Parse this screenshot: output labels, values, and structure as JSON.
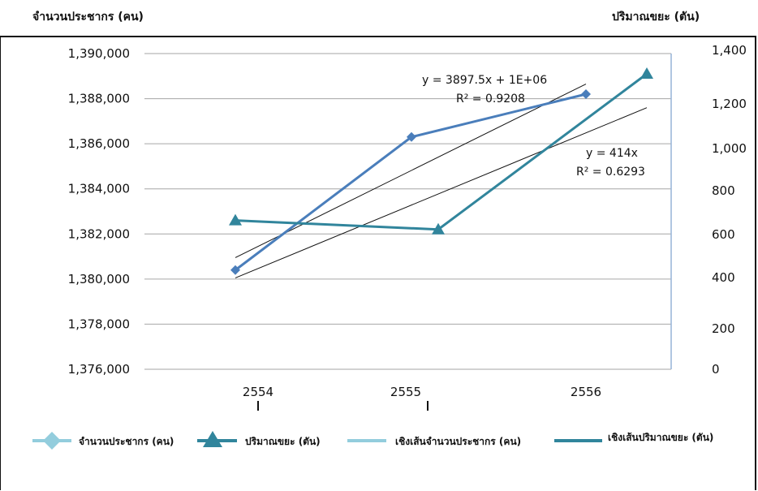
{
  "chart_data": {
    "type": "line",
    "categories": [
      "2554",
      "2555",
      "2556"
    ],
    "y_left_label": "จำนวนประชากร (คน)",
    "y_right_label": "ปริมาณขยะ (ตัน)",
    "y_left_ticks": [
      "1,376,000",
      "1,378,000",
      "1,380,000",
      "1,382,000",
      "1,384,000",
      "1,386,000",
      "1,388,000",
      "1,390,000"
    ],
    "y_right_ticks": [
      "0",
      "200",
      "400",
      "600",
      "800",
      "1,000",
      "1,200",
      "1,400"
    ],
    "y_left_range": [
      1376000,
      1390000
    ],
    "y_right_range": [
      0,
      1400
    ],
    "grid": true,
    "legend_position": "bottom",
    "series": [
      {
        "name": "จำนวนประชากร (คน)",
        "axis": "left",
        "marker": "diamond",
        "color": "#4a7ebb",
        "values": [
          1380400,
          1386300,
          1388200
        ]
      },
      {
        "name": "ปริมาณขยะ (ตัน)",
        "axis": "right",
        "marker": "triangle",
        "color": "#31859c",
        "values": [
          660,
          620,
          1310
        ]
      },
      {
        "name": "เชิงเส้นจำนวนประชากร (คน)",
        "axis": "left",
        "marker": "none",
        "color": "#93cddd",
        "trendline_of": 0,
        "equation": "y = 3897.5x + 1E+06",
        "r2": "R² = 0.9208"
      },
      {
        "name": "เชิงเส้นปริมาณขยะ (ตัน)",
        "axis": "right",
        "marker": "none",
        "color": "#31859c",
        "trendline_of": 1,
        "equation": "y = 414x",
        "r2": "R² = 0.6293"
      }
    ]
  }
}
